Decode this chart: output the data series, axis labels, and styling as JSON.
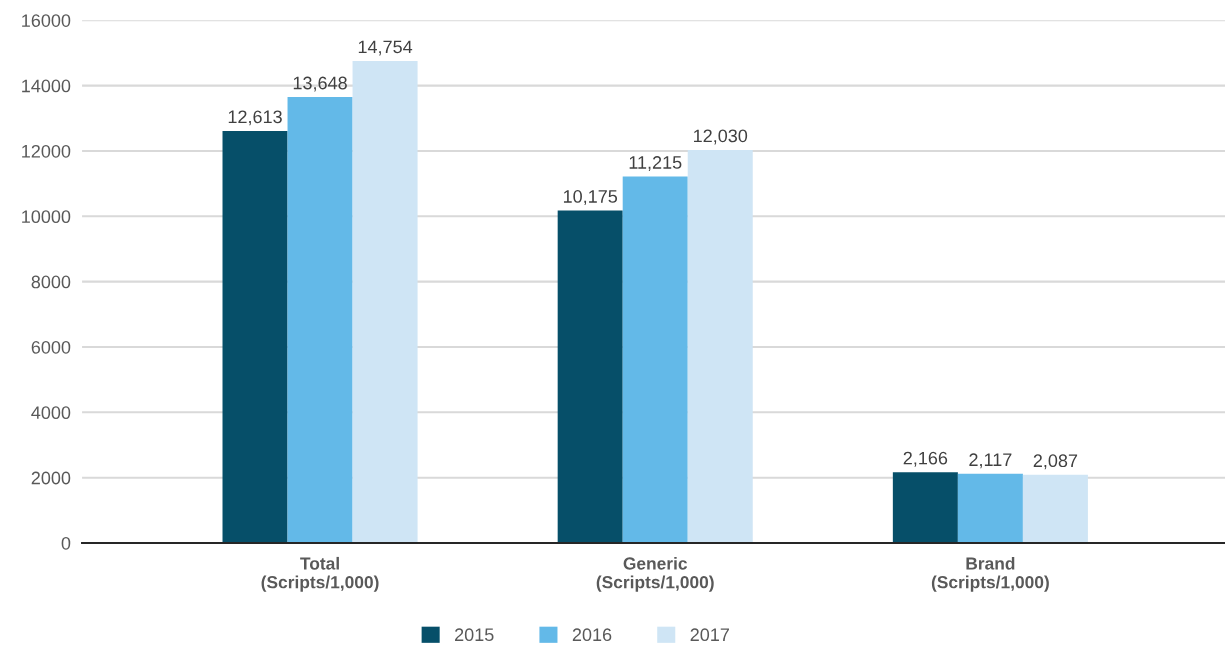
{
  "chart_data": {
    "type": "bar",
    "categories": [
      "Total\n(Scripts/1,000)",
      "Generic\n(Scripts/1,000)",
      "Brand\n(Scripts/1,000)"
    ],
    "series": [
      {
        "name": "2015",
        "color": "#064f69",
        "values": [
          12613,
          10175,
          2166
        ],
        "value_labels": [
          "12,613",
          "10,175",
          "2,166"
        ]
      },
      {
        "name": "2016",
        "color": "#63b9e8",
        "values": [
          13648,
          11215,
          2117
        ],
        "value_labels": [
          "13,648",
          "11,215",
          "2,117"
        ]
      },
      {
        "name": "2017",
        "color": "#cfe5f5",
        "values": [
          14754,
          12030,
          2087
        ],
        "value_labels": [
          "14,754",
          "12,030",
          "2,087"
        ]
      }
    ],
    "ylim": [
      0,
      16000
    ],
    "yticks": [
      0,
      2000,
      4000,
      6000,
      8000,
      10000,
      12000,
      14000,
      16000
    ],
    "grid": "y",
    "legend": "bottom"
  }
}
